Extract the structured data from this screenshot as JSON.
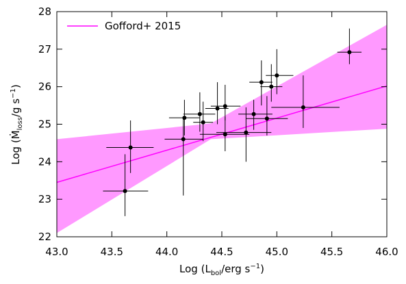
{
  "chart_data": {
    "type": "scatter",
    "x_label": {
      "prefix": "Log (L",
      "sub": "bol",
      "mid": "/erg s",
      "sup": "−1",
      "suffix": ")"
    },
    "y_label": {
      "prefix": "Log (Ṁ",
      "sub": "loss",
      "mid": "/g s",
      "sup": "−1",
      "suffix": ")"
    },
    "xlim": [
      43.0,
      46.0
    ],
    "xticks": [
      {
        "value": 43,
        "label": "43.0"
      },
      43.5,
      {
        "value": 44,
        "label": "44.0"
      },
      44.5,
      {
        "value": 45,
        "label": "45.0"
      },
      45.5,
      {
        "value": 46,
        "label": "46.0"
      }
    ],
    "ylim": [
      22,
      28
    ],
    "yticks": [
      22,
      23,
      24,
      25,
      26,
      27,
      28
    ],
    "legend": "upper left",
    "fit": {
      "name": "Gofford+ 2015",
      "color": "#ff00ff",
      "x": [
        43.0,
        46.0
      ],
      "y": [
        23.45,
        26.02
      ]
    },
    "band": {
      "color": "#ff99ff",
      "x": [
        43.0,
        44.4,
        46.0
      ],
      "upper": [
        24.6,
        25.02,
        27.65
      ],
      "lower": [
        22.1,
        24.6,
        24.88
      ]
    },
    "series": [
      {
        "color": "#000000",
        "x": [
          43.62,
          43.67,
          44.15,
          44.16,
          44.3,
          44.33,
          44.46,
          44.53,
          44.53,
          44.72,
          44.79,
          44.86,
          44.91,
          44.95,
          45.0,
          45.24,
          45.66
        ],
        "xlow": [
          43.42,
          43.45,
          43.98,
          44.02,
          44.15,
          44.24,
          44.35,
          44.4,
          44.3,
          44.45,
          44.65,
          44.75,
          44.72,
          44.85,
          44.9,
          44.95,
          45.55
        ],
        "xhigh": [
          43.83,
          43.88,
          44.33,
          44.3,
          44.44,
          44.42,
          44.56,
          44.67,
          44.75,
          44.95,
          44.96,
          44.96,
          45.1,
          45.05,
          45.15,
          45.57,
          45.77
        ],
        "values": [
          23.22,
          24.38,
          24.6,
          25.17,
          25.27,
          25.05,
          25.42,
          25.48,
          24.73,
          24.78,
          25.27,
          26.12,
          25.15,
          26.0,
          26.3,
          25.45,
          26.92
        ],
        "ylow": [
          22.55,
          23.7,
          23.1,
          24.7,
          24.8,
          24.55,
          25.0,
          25.1,
          24.28,
          24.0,
          24.85,
          25.5,
          24.7,
          25.6,
          25.8,
          24.9,
          26.6
        ],
        "yhigh": [
          24.2,
          25.1,
          25.2,
          25.65,
          25.85,
          25.6,
          26.12,
          26.05,
          25.2,
          25.45,
          25.65,
          26.7,
          25.75,
          26.6,
          27.0,
          26.3,
          27.55
        ]
      }
    ]
  }
}
